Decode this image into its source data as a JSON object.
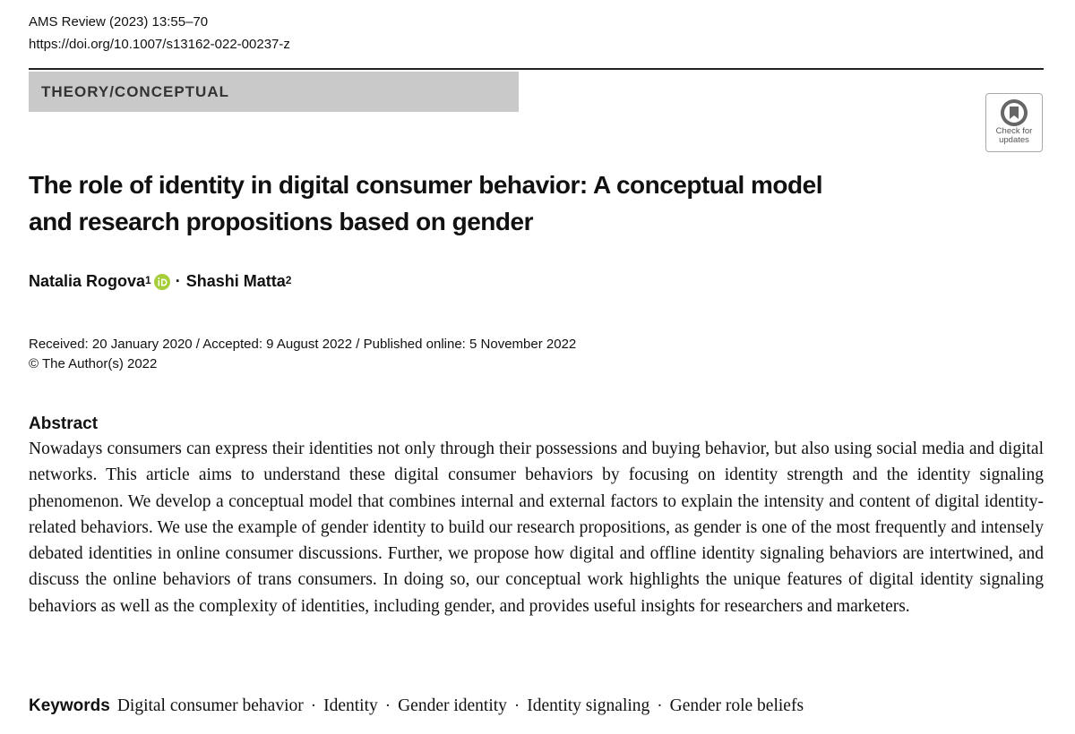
{
  "header": {
    "journal": "AMS Review (2023) 13:55–70",
    "doi": "https://doi.org/10.1007/s13162-022-00237-z",
    "section": "THEORY/CONCEPTUAL",
    "badge": [
      "Check for",
      "updates"
    ]
  },
  "title_lines": [
    "The role of identity in digital consumer behavior: A conceptual model",
    "and research propositions based on gender"
  ],
  "authors": [
    {
      "name": "Natalia Rogova",
      "affiliation": "1"
    },
    {
      "name": "Shashi Matta",
      "affiliation": "2"
    }
  ],
  "author_separator": "·",
  "dates": "Received: 20 January 2020 / Accepted: 9 August 2022 / Published online: 5 November 2022",
  "copyright": "© The Author(s) 2022",
  "abstract": {
    "heading": "Abstract",
    "text": "Nowadays consumers can express their identities not only through their possessions and buying behavior, but also using social media and digital networks. This article aims to understand these digital consumer behaviors by focusing on identity strength and the identity signaling phenomenon. We develop a conceptual model that combines internal and external factors to explain the intensity and content of digital identity-related behaviors. We use the example of gender identity to build our research propositions, as gender is one of the most frequently and intensely debated identities in online consumer discussions. Further, we propose how digital and offline identity signaling behaviors are intertwined, and discuss the online behaviors of trans consumers. In doing so, our conceptual work highlights the unique features of digital identity signaling behaviors as well as the complexity of identities, including gender, and provides useful insights for researchers and marketers."
  },
  "keywords": {
    "heading": "Keywords",
    "items": [
      "Digital consumer behavior",
      "Identity",
      "Gender identity",
      "Identity signaling",
      "Gender role beliefs"
    ],
    "separator": "·"
  }
}
